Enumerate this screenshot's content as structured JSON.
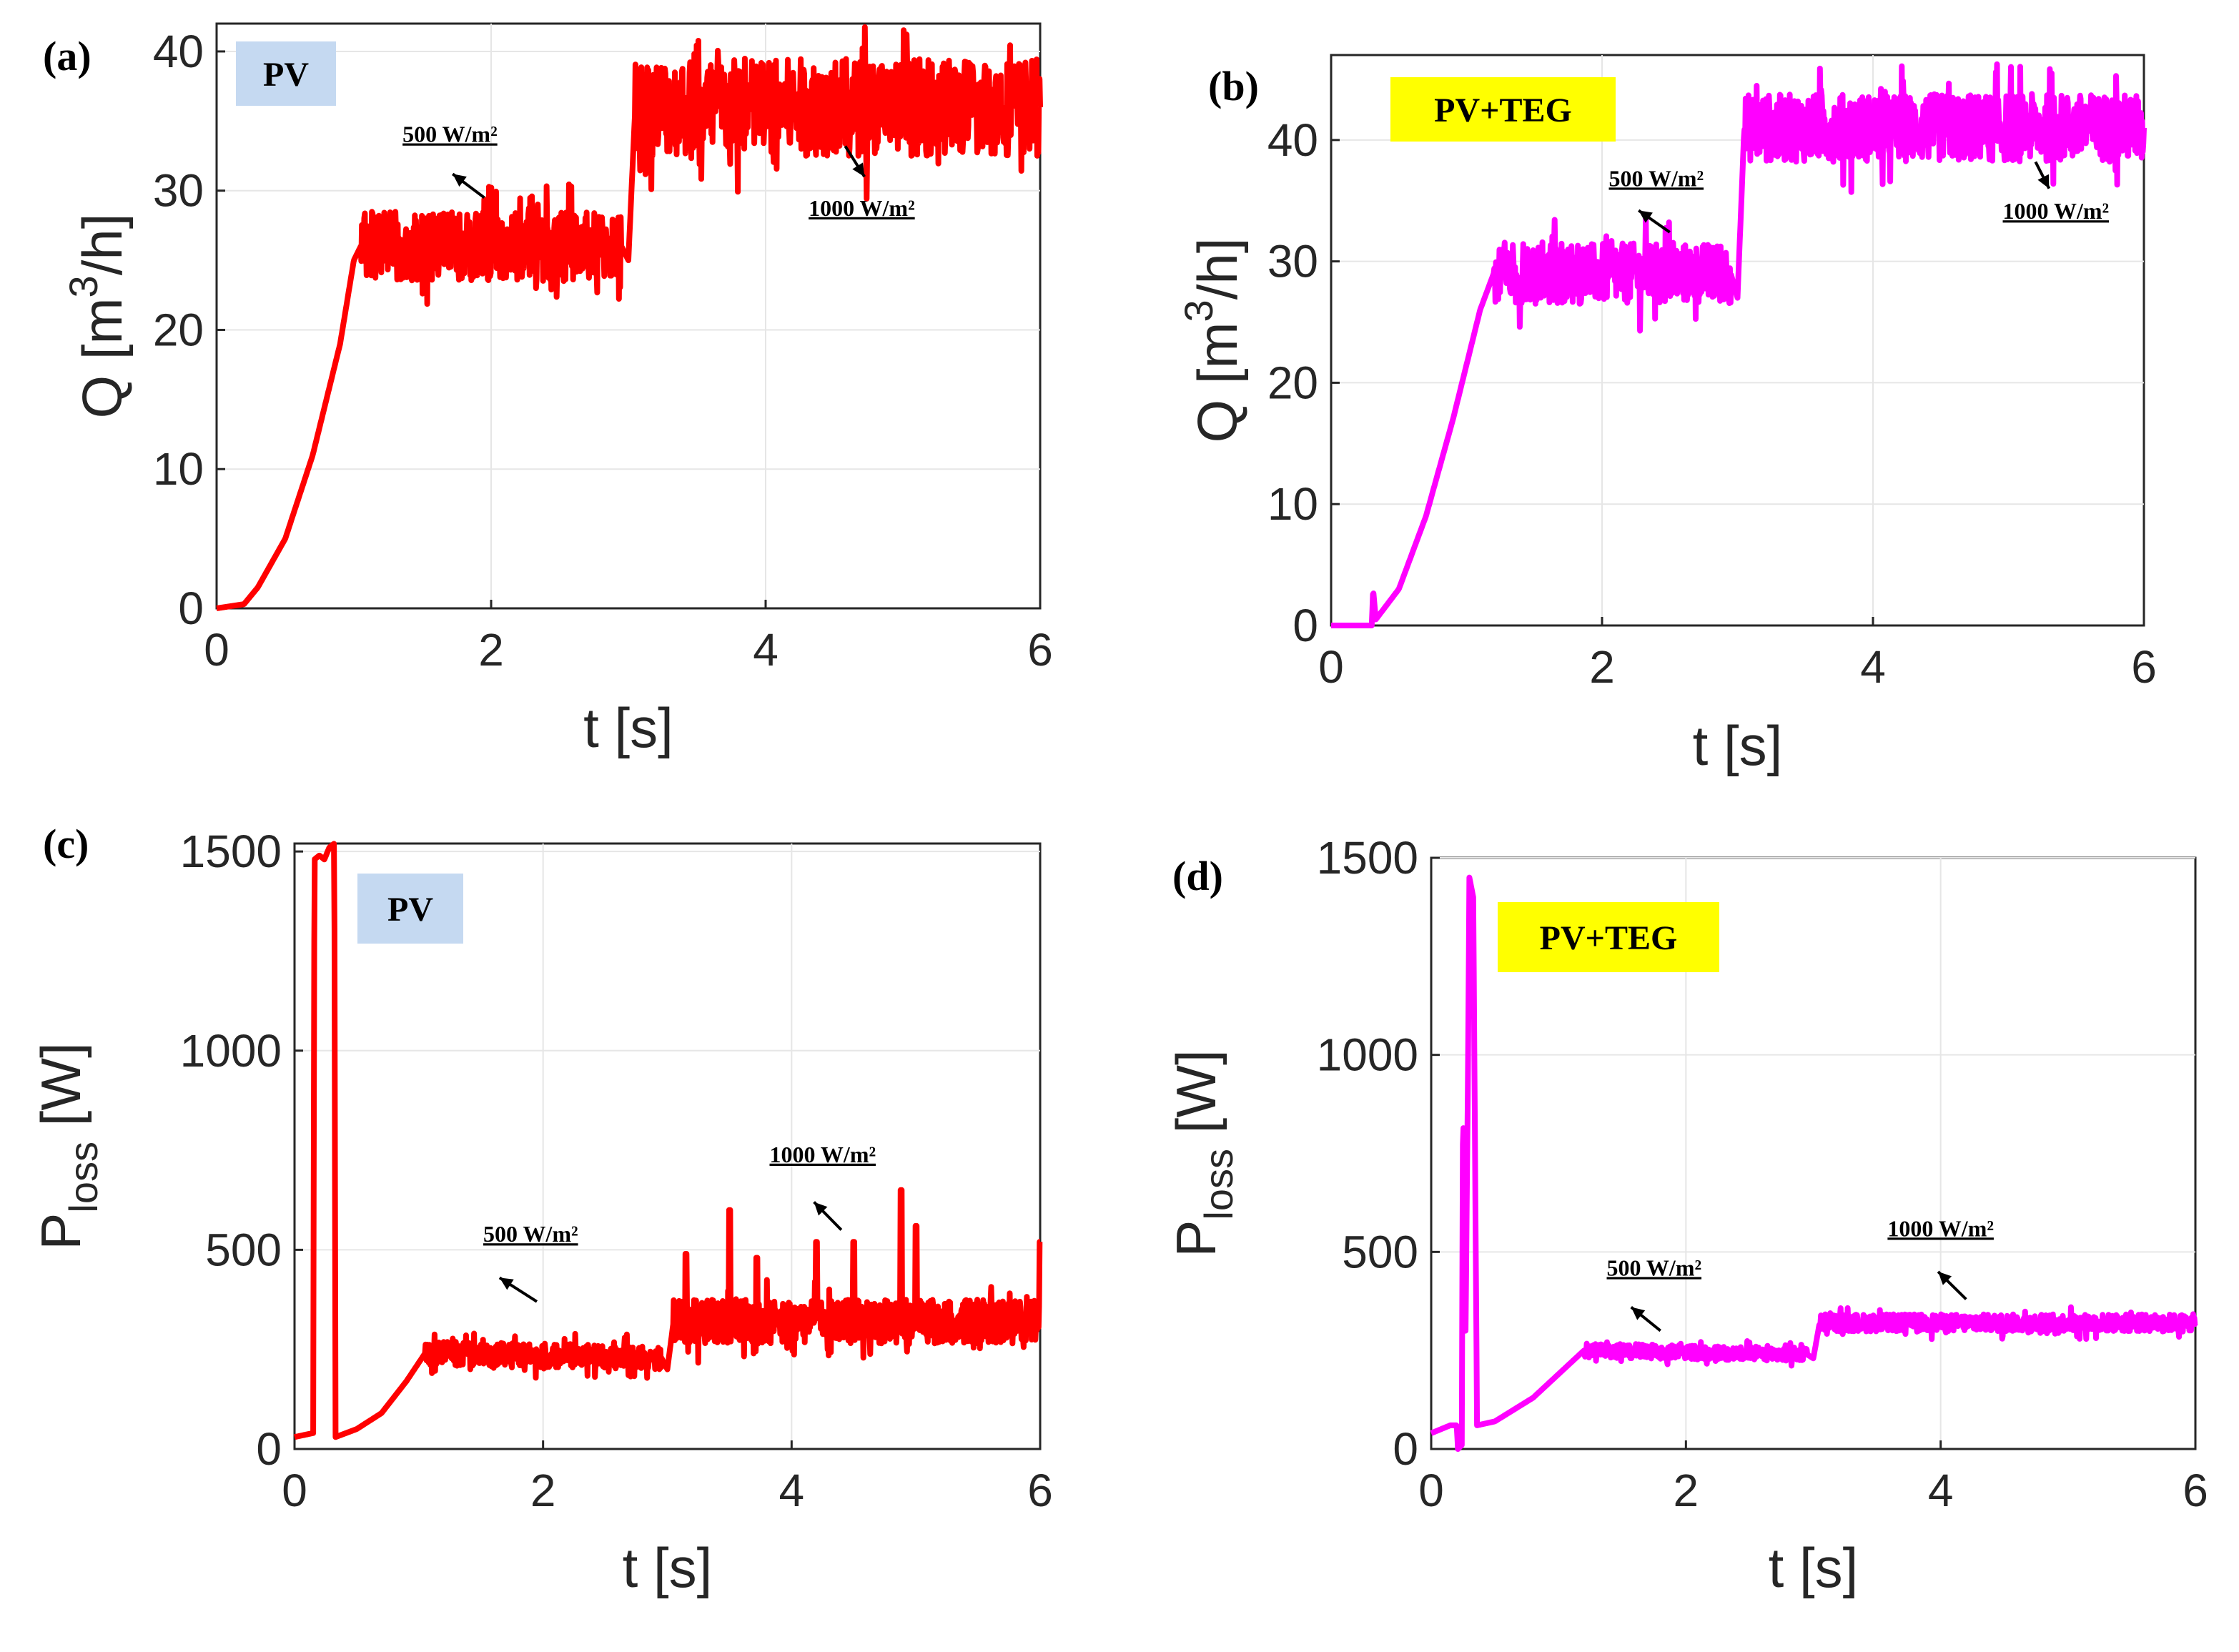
{
  "figure": {
    "panels": [
      "a",
      "b",
      "c",
      "d"
    ]
  },
  "chart_data": [
    {
      "id": "a",
      "type": "line",
      "panel_label": "(a)",
      "badge": "PV",
      "badge_color": "#c5d9f1",
      "line_color": "#ff0000",
      "xlabel": "t [s]",
      "ylabel": "Q [m^3/h]",
      "ylabel_main": "Q [m",
      "ylabel_sup": "3",
      "ylabel_end": "/h]",
      "xlim": [
        0,
        6
      ],
      "ylim": [
        0,
        42
      ],
      "xticks": [
        "0",
        "2",
        "4",
        "6"
      ],
      "yticks": [
        "0",
        "10",
        "20",
        "30",
        "40"
      ],
      "xtick_values": [
        0,
        2,
        4,
        6
      ],
      "ytick_values": [
        0,
        10,
        20,
        30,
        40
      ],
      "series": [
        {
          "name": "Q (PV)",
          "shape": [
            [
              0,
              0
            ],
            [
              0.2,
              0.3
            ],
            [
              0.3,
              1.5
            ],
            [
              0.5,
              5
            ],
            [
              0.7,
              11
            ],
            [
              0.9,
              19
            ],
            [
              1.0,
              25
            ],
            [
              1.05,
              26
            ],
            [
              2.95,
              26
            ],
            [
              3.0,
              25
            ],
            [
              3.05,
              36
            ],
            [
              6.0,
              36
            ]
          ],
          "noise": [
            [
              1.05,
              2.95,
              2.5,
              5
            ],
            [
              3.05,
              6.0,
              3.5,
              5
            ]
          ]
        }
      ],
      "annotations": [
        {
          "text": "500 W/m²",
          "x": 1.7,
          "y": 33.5,
          "arrow_to": [
            1.72,
            31.2
          ],
          "arrow_from": [
            1.95,
            29.5
          ]
        },
        {
          "text": "1000 W/m²",
          "x": 4.7,
          "y": 28.2,
          "arrow_to": [
            4.72,
            31.0
          ],
          "arrow_from": [
            4.58,
            33.2
          ]
        }
      ]
    },
    {
      "id": "b",
      "type": "line",
      "panel_label": "(b)",
      "badge": "PV+TEG",
      "badge_color": "#ffff00",
      "line_color": "#ff00ff",
      "xlabel": "t [s]",
      "ylabel": "Q [m^3/h]",
      "ylabel_main": "Q [m",
      "ylabel_sup": "3",
      "ylabel_end": "/h]",
      "xlim": [
        0,
        6
      ],
      "ylim": [
        0,
        47
      ],
      "xticks": [
        "0",
        "2",
        "4",
        "6"
      ],
      "yticks": [
        "0",
        "10",
        "20",
        "30",
        "40"
      ],
      "xtick_values": [
        0,
        2,
        4,
        6
      ],
      "ytick_values": [
        0,
        10,
        20,
        30,
        40
      ],
      "series": [
        {
          "name": "Q (PV+TEG)",
          "shape": [
            [
              0,
              0
            ],
            [
              0.3,
              0
            ],
            [
              0.31,
              3
            ],
            [
              0.33,
              0.5
            ],
            [
              0.5,
              3
            ],
            [
              0.7,
              9
            ],
            [
              0.9,
              17
            ],
            [
              1.1,
              26
            ],
            [
              1.2,
              29
            ],
            [
              2.95,
              29
            ],
            [
              3.0,
              27
            ],
            [
              3.05,
              41
            ],
            [
              6.0,
              41
            ]
          ],
          "noise": [
            [
              1.2,
              2.95,
              2.5,
              5
            ],
            [
              3.05,
              6.0,
              2.8,
              5
            ]
          ]
        }
      ],
      "annotations": [
        {
          "text": "500 W/m²",
          "x": 2.4,
          "y": 36.2,
          "arrow_to": [
            2.27,
            34.2
          ],
          "arrow_from": [
            2.5,
            32.4
          ]
        },
        {
          "text": "1000 W/m²",
          "x": 5.35,
          "y": 33.5,
          "arrow_to": [
            5.3,
            36.0
          ],
          "arrow_from": [
            5.2,
            38.2
          ]
        }
      ]
    },
    {
      "id": "c",
      "type": "line",
      "panel_label": "(c)",
      "badge": "PV",
      "badge_color": "#c5d9f1",
      "line_color": "#ff0000",
      "xlabel": "t [s]",
      "ylabel": "P_loss [W]",
      "ylabel_main": "P",
      "ylabel_sub": "loss",
      "ylabel_end": " [W]",
      "xlim": [
        0,
        6
      ],
      "ylim": [
        0,
        1520
      ],
      "xticks": [
        "0",
        "2",
        "4",
        "6"
      ],
      "yticks": [
        "0",
        "500",
        "1000",
        "1500"
      ],
      "xtick_values": [
        0,
        2,
        4,
        6
      ],
      "ytick_values": [
        0,
        500,
        1000,
        1500
      ],
      "series": [
        {
          "name": "P_loss (PV)",
          "shape": [
            [
              0,
              30
            ],
            [
              0.15,
              40
            ],
            [
              0.16,
              1480
            ],
            [
              0.2,
              1490
            ],
            [
              0.24,
              1480
            ],
            [
              0.28,
              1510
            ],
            [
              0.32,
              1520
            ],
            [
              0.33,
              30
            ],
            [
              0.5,
              50
            ],
            [
              0.7,
              90
            ],
            [
              0.9,
              170
            ],
            [
              1.05,
              240
            ],
            [
              2.95,
              230
            ],
            [
              3.0,
              200
            ],
            [
              3.05,
              320
            ],
            [
              6.0,
              320
            ]
          ],
          "noise": [
            [
              1.05,
              2.95,
              30,
              5
            ],
            [
              3.05,
              6.0,
              55,
              5
            ]
          ],
          "spikes": [
            [
              3.5,
              600
            ],
            [
              3.15,
              490
            ],
            [
              4.2,
              520
            ],
            [
              4.5,
              520
            ],
            [
              4.88,
              650
            ],
            [
              5.0,
              560
            ],
            [
              6.0,
              520
            ],
            [
              3.72,
              480
            ]
          ]
        }
      ],
      "annotations": [
        {
          "text": "500 W/m²",
          "x": 1.9,
          "y": 520,
          "arrow_to": [
            1.65,
            430
          ],
          "arrow_from": [
            1.95,
            370
          ]
        },
        {
          "text": "1000 W/m²",
          "x": 4.25,
          "y": 720,
          "arrow_to": [
            4.18,
            620
          ],
          "arrow_from": [
            4.4,
            550
          ]
        }
      ]
    },
    {
      "id": "d",
      "type": "line",
      "panel_label": "(d)",
      "badge": "PV+TEG",
      "badge_color": "#ffff00",
      "line_color": "#ff00ff",
      "xlabel": "t [s]",
      "ylabel": "P_loss [W]",
      "ylabel_main": "P",
      "ylabel_sub": "loss",
      "ylabel_end": " [W]",
      "xlim": [
        0,
        6
      ],
      "ylim": [
        0,
        1500
      ],
      "xticks": [
        "0",
        "2",
        "4",
        "6"
      ],
      "yticks": [
        "0",
        "500",
        "1000",
        "1500"
      ],
      "xtick_values": [
        0,
        2,
        4,
        6
      ],
      "ytick_values": [
        0,
        500,
        1000,
        1500
      ],
      "series": [
        {
          "name": "P_loss (PV+TEG)",
          "shape": [
            [
              0,
              40
            ],
            [
              0.15,
              60
            ],
            [
              0.2,
              60
            ],
            [
              0.21,
              0
            ],
            [
              0.24,
              10
            ],
            [
              0.25,
              900
            ],
            [
              0.27,
              300
            ],
            [
              0.29,
              1000
            ],
            [
              0.3,
              1450
            ],
            [
              0.33,
              1400
            ],
            [
              0.36,
              60
            ],
            [
              0.5,
              70
            ],
            [
              0.8,
              130
            ],
            [
              1.1,
              220
            ],
            [
              1.2,
              250
            ],
            [
              2.95,
              240
            ],
            [
              3.0,
              230
            ],
            [
              3.05,
              320
            ],
            [
              6.0,
              320
            ]
          ],
          "noise": [
            [
              1.2,
              2.95,
              18,
              5
            ],
            [
              3.05,
              6.0,
              22,
              5
            ]
          ]
        }
      ],
      "annotations": [
        {
          "text": "500 W/m²",
          "x": 1.75,
          "y": 440,
          "arrow_to": [
            1.57,
            360
          ],
          "arrow_from": [
            1.8,
            300
          ]
        },
        {
          "text": "1000 W/m²",
          "x": 4.0,
          "y": 540,
          "arrow_to": [
            3.98,
            450
          ],
          "arrow_from": [
            4.2,
            380
          ]
        }
      ]
    }
  ]
}
